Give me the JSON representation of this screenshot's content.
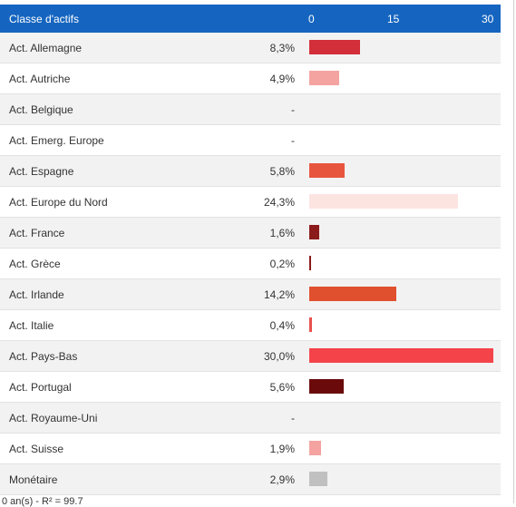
{
  "header": {
    "label": "Classe d'actifs",
    "ticks": [
      "0",
      "15",
      "30"
    ]
  },
  "footer_text": "0 an(s) - R² = 99.7",
  "chart_data": {
    "type": "bar",
    "orientation": "horizontal",
    "xlim": [
      0,
      30
    ],
    "categories": [
      "Act. Allemagne",
      "Act. Autriche",
      "Act. Belgique",
      "Act. Emerg. Europe",
      "Act. Espagne",
      "Act. Europe du Nord",
      "Act. France",
      "Act. Grèce",
      "Act. Irlande",
      "Act. Italie",
      "Act. Pays-Bas",
      "Act. Portugal",
      "Act. Royaume-Uni",
      "Act. Suisse",
      "Monétaire"
    ],
    "values": [
      8.3,
      4.9,
      null,
      null,
      5.8,
      24.3,
      1.6,
      0.2,
      14.2,
      0.4,
      30.0,
      5.6,
      null,
      1.9,
      2.9
    ],
    "labels": [
      "8,3%",
      "4,9%",
      "-",
      "-",
      "5,8%",
      "24,3%",
      "1,6%",
      "0,2%",
      "14,2%",
      "0,4%",
      "30,0%",
      "5,6%",
      "-",
      "1,9%",
      "2,9%"
    ],
    "colors": [
      "#d32f3a",
      "#f4a3a0",
      null,
      null,
      "#e8553f",
      "#fce4e1",
      "#8b1a1a",
      "#8b1a1a",
      "#e0502e",
      "#e8514d",
      "#f4444a",
      "#6a0a0a",
      null,
      "#f4a3a0",
      "#c0c0c0"
    ]
  }
}
